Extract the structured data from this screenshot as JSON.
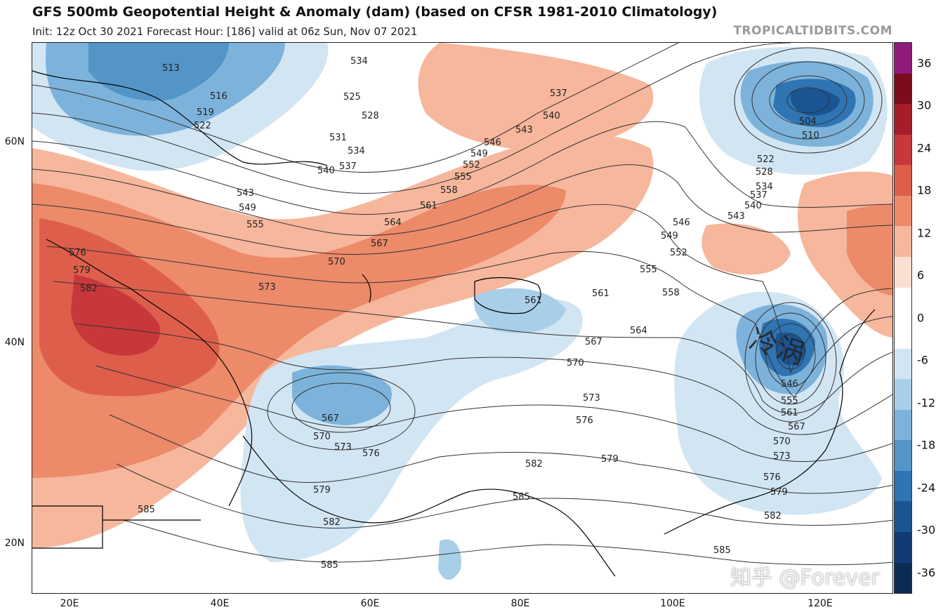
{
  "header": {
    "title": "GFS 500mb Geopotential Height & Anomaly (dam) (based on CFSR 1981-2010 Climatology)",
    "subtitle": "Init: 12z Oct 30 2021   Forecast Hour: [186]   valid at 06z Sun, Nov 07 2021",
    "credit": "TROPICALTIDBITS.COM"
  },
  "axes": {
    "lat_labels": [
      "60N",
      "40N",
      "20N"
    ],
    "lon_labels": [
      "20E",
      "40E",
      "60E",
      "80E",
      "100E",
      "120E"
    ]
  },
  "colorbar": {
    "ticks": [
      "36",
      "30",
      "24",
      "18",
      "12",
      "6",
      "0",
      "-6",
      "-12",
      "-18",
      "-24",
      "-30",
      "-36"
    ],
    "colors": [
      "#8e1a7a",
      "#7a0c1c",
      "#a51c2a",
      "#c8383a",
      "#dd5f4b",
      "#ec8a6a",
      "#f6b79c",
      "#fbe0d2",
      "#ffffff",
      "#ffffff",
      "#d2e5f3",
      "#a9cee8",
      "#7db3db",
      "#5495c8",
      "#2f74b3",
      "#1b5493",
      "#123b73",
      "#0d2a55"
    ]
  },
  "annotations": {
    "handwritten": "冷涡",
    "watermark": "知乎 @Forever"
  },
  "contour_labels": [
    "513",
    "516",
    "519",
    "522",
    "525",
    "528",
    "531",
    "534",
    "537",
    "540",
    "543",
    "546",
    "549",
    "552",
    "555",
    "558",
    "561",
    "564",
    "567",
    "570",
    "573",
    "576",
    "579",
    "582",
    "585",
    "504",
    "510"
  ]
}
